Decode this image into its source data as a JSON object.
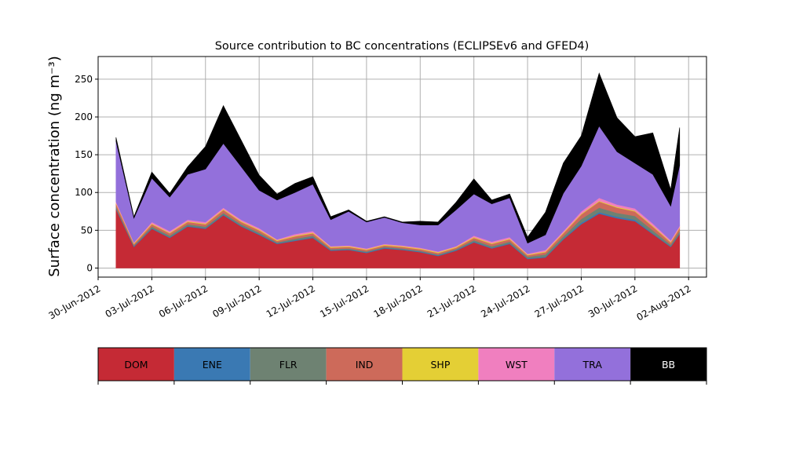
{
  "chart_data": {
    "type": "area",
    "stacked": true,
    "title": "Source contribution to BC concentrations (ECLIPSEv6 and GFED4)",
    "ylabel": "Surface concentration (ng m⁻³)",
    "xlabel": "",
    "xlim": [
      "2012-06-30",
      "2012-08-03"
    ],
    "ylim": [
      -12,
      280
    ],
    "yticks": [
      0,
      50,
      100,
      150,
      200,
      250
    ],
    "xticks": [
      "30-Jun-2012",
      "03-Jul-2012",
      "06-Jul-2012",
      "09-Jul-2012",
      "12-Jul-2012",
      "15-Jul-2012",
      "18-Jul-2012",
      "21-Jul-2012",
      "24-Jul-2012",
      "27-Jul-2012",
      "30-Jul-2012",
      "02-Aug-2012"
    ],
    "grid": true,
    "x": [
      "2012-07-01",
      "2012-07-02",
      "2012-07-03",
      "2012-07-04",
      "2012-07-05",
      "2012-07-06",
      "2012-07-07",
      "2012-07-08",
      "2012-07-09",
      "2012-07-10",
      "2012-07-11",
      "2012-07-12",
      "2012-07-13",
      "2012-07-14",
      "2012-07-15",
      "2012-07-16",
      "2012-07-17",
      "2012-07-18",
      "2012-07-19",
      "2012-07-20",
      "2012-07-21",
      "2012-07-22",
      "2012-07-23",
      "2012-07-24",
      "2012-07-25",
      "2012-07-26",
      "2012-07-27",
      "2012-07-28",
      "2012-07-29",
      "2012-07-30",
      "2012-07-31",
      "2012-08-01",
      "2012-08-01T12:00"
    ],
    "series": [
      {
        "name": "DOM",
        "color": "#c52a35",
        "values": [
          78,
          28,
          52,
          40,
          55,
          52,
          70,
          55,
          44,
          32,
          36,
          40,
          23,
          24,
          20,
          26,
          24,
          21,
          16,
          23,
          34,
          26,
          32,
          12,
          14,
          38,
          58,
          72,
          66,
          62,
          45,
          28,
          45
        ]
      },
      {
        "name": "ENE",
        "color": "#3a79b3",
        "values": [
          1,
          1,
          1,
          1,
          1,
          1,
          1,
          1,
          1,
          1,
          1,
          1,
          1,
          1,
          1,
          1,
          1,
          1,
          1,
          1,
          1,
          1,
          1,
          1,
          1,
          1,
          2,
          2,
          2,
          2,
          1,
          1,
          1
        ]
      },
      {
        "name": "FLR",
        "color": "#6e8272",
        "values": [
          2,
          1,
          2,
          2,
          2,
          2,
          2,
          2,
          2,
          1,
          2,
          2,
          1,
          1,
          1,
          1,
          1,
          1,
          1,
          1,
          2,
          2,
          2,
          2,
          3,
          3,
          5,
          6,
          5,
          5,
          4,
          2,
          3
        ]
      },
      {
        "name": "IND",
        "color": "#cd6a5a",
        "values": [
          4,
          2,
          3,
          3,
          3,
          3,
          4,
          3,
          3,
          2,
          3,
          3,
          2,
          2,
          2,
          2,
          2,
          2,
          2,
          2,
          3,
          3,
          3,
          2,
          3,
          4,
          6,
          8,
          7,
          6,
          5,
          3,
          4
        ]
      },
      {
        "name": "SHP",
        "color": "#e4cf35",
        "values": [
          1,
          1,
          1,
          1,
          1,
          1,
          1,
          1,
          1,
          1,
          1,
          1,
          1,
          1,
          1,
          1,
          1,
          1,
          1,
          1,
          1,
          1,
          1,
          1,
          1,
          1,
          1,
          1,
          1,
          1,
          1,
          1,
          1
        ]
      },
      {
        "name": "WST",
        "color": "#f07fbf",
        "values": [
          2,
          1,
          2,
          2,
          2,
          2,
          2,
          2,
          2,
          1,
          2,
          2,
          1,
          1,
          1,
          1,
          1,
          1,
          1,
          1,
          2,
          2,
          2,
          1,
          2,
          2,
          3,
          4,
          3,
          3,
          3,
          2,
          2
        ]
      },
      {
        "name": "TRA",
        "color": "#9370db",
        "values": [
          80,
          32,
          58,
          45,
          60,
          70,
          85,
          70,
          50,
          52,
          55,
          62,
          35,
          45,
          35,
          35,
          30,
          30,
          35,
          48,
          55,
          50,
          52,
          14,
          20,
          50,
          60,
          95,
          70,
          60,
          65,
          45,
          80
        ]
      },
      {
        "name": "BB",
        "color": "#000000",
        "values": [
          5,
          2,
          8,
          5,
          10,
          30,
          50,
          35,
          20,
          8,
          12,
          10,
          4,
          2,
          1,
          1,
          1,
          5,
          4,
          10,
          20,
          5,
          5,
          8,
          30,
          40,
          40,
          70,
          45,
          35,
          55,
          22,
          50
        ]
      }
    ]
  },
  "legend": {
    "items": [
      {
        "label": "DOM",
        "color": "#c52a35",
        "text_color": "#000000"
      },
      {
        "label": "ENE",
        "color": "#3a79b3",
        "text_color": "#000000"
      },
      {
        "label": "FLR",
        "color": "#6e8272",
        "text_color": "#000000"
      },
      {
        "label": "IND",
        "color": "#cd6a5a",
        "text_color": "#000000"
      },
      {
        "label": "SHP",
        "color": "#e4cf35",
        "text_color": "#000000"
      },
      {
        "label": "WST",
        "color": "#f07fbf",
        "text_color": "#000000"
      },
      {
        "label": "TRA",
        "color": "#9370db",
        "text_color": "#000000"
      },
      {
        "label": "BB",
        "color": "#000000",
        "text_color": "#ffffff"
      }
    ]
  }
}
